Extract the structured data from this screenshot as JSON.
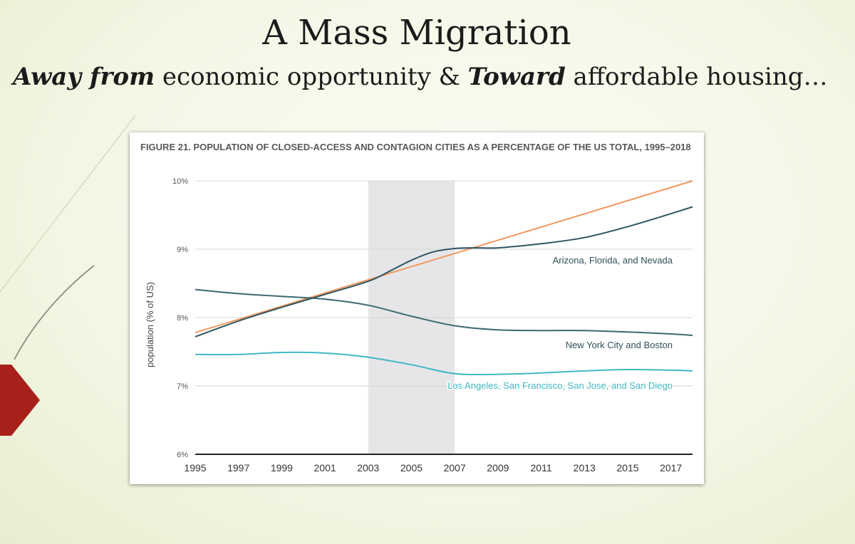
{
  "slide": {
    "title": "A Mass Migration",
    "subtitle": {
      "part1": "Away from",
      "part2": " economic opportunity & ",
      "part3": "Toward",
      "part4": " affordable housing…"
    },
    "accent_color": "#a8201a"
  },
  "chart_data": {
    "type": "line",
    "title": "FIGURE 21. POPULATION OF CLOSED-ACCESS AND CONTAGION CITIES AS A PERCENTAGE OF THE US TOTAL, 1995–2018",
    "xlabel": "",
    "ylabel": "population (% of US)",
    "xlim": [
      1995,
      2018
    ],
    "ylim": [
      6,
      10
    ],
    "xticks": [
      1995,
      1997,
      1999,
      2001,
      2003,
      2005,
      2007,
      2009,
      2011,
      2013,
      2015,
      2017
    ],
    "yticks": [
      6,
      7,
      8,
      9,
      10
    ],
    "yticklabels": [
      "6%",
      "7%",
      "8%",
      "9%",
      "10%"
    ],
    "grid": true,
    "shaded_band": {
      "from": 2003,
      "to": 2007,
      "color": "#e6e6e8"
    },
    "series": [
      {
        "name": "Arizona, Florida, and Nevada",
        "color": "#2f5563",
        "x": [
          1995,
          1997,
          1999,
          2001,
          2003,
          2004,
          2005,
          2006,
          2007,
          2008,
          2009,
          2011,
          2013,
          2015,
          2017,
          2018
        ],
        "values": [
          7.72,
          7.95,
          8.15,
          8.34,
          8.53,
          8.68,
          8.84,
          8.96,
          9.01,
          9.02,
          9.02,
          9.08,
          9.17,
          9.33,
          9.52,
          9.62
        ]
      },
      {
        "name": "New York City and Boston",
        "color": "#3b6a70",
        "x": [
          1995,
          1997,
          1999,
          2001,
          2003,
          2005,
          2007,
          2009,
          2011,
          2013,
          2015,
          2017,
          2018
        ],
        "values": [
          8.41,
          8.35,
          8.31,
          8.27,
          8.18,
          8.02,
          7.88,
          7.82,
          7.81,
          7.81,
          7.79,
          7.76,
          7.74
        ]
      },
      {
        "name": "Los Angeles, San Francisco, San Jose, and San Diego",
        "color": "#3fb8c4",
        "x": [
          1995,
          1997,
          1999,
          2001,
          2003,
          2005,
          2007,
          2009,
          2011,
          2013,
          2015,
          2017,
          2018
        ],
        "values": [
          7.46,
          7.46,
          7.49,
          7.48,
          7.42,
          7.31,
          7.18,
          7.17,
          7.19,
          7.22,
          7.24,
          7.23,
          7.22
        ]
      },
      {
        "name": "",
        "color": "#f2975e",
        "x": [
          1995,
          2018
        ],
        "values": [
          7.78,
          10.0
        ]
      }
    ]
  }
}
